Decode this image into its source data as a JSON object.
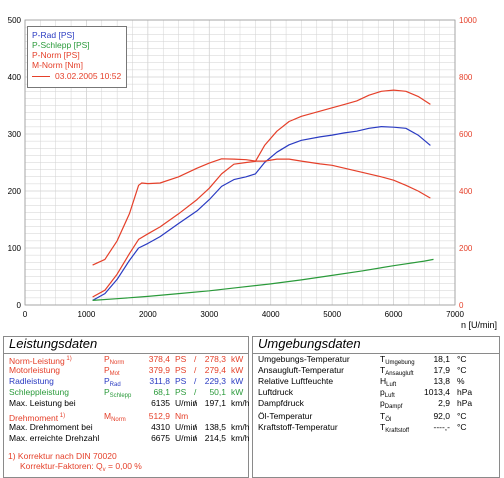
{
  "chart_data": {
    "type": "line",
    "xlabel": "n [U/min]",
    "xlim": [
      0,
      7000
    ],
    "ylim_left": [
      0,
      500
    ],
    "ylim_right": [
      0,
      1000
    ],
    "x_ticks": [
      "0",
      "1000",
      "2000",
      "3000",
      "4000",
      "5000",
      "6000",
      "7000"
    ],
    "y_ticks_left": [
      "0",
      "100",
      "200",
      "300",
      "400",
      "500"
    ],
    "y_ticks_right": [
      "0",
      "200",
      "400",
      "600",
      "800",
      "1000"
    ],
    "grid": true,
    "legend_position": "top-left",
    "series": [
      {
        "name": "P-Rad [PS]",
        "color": "#2a3bc2",
        "axis": "left",
        "x": [
          1100,
          1300,
          1500,
          1700,
          1850,
          2000,
          2200,
          2500,
          2800,
          3000,
          3200,
          3400,
          3600,
          3750,
          3900,
          4100,
          4300,
          4500,
          4800,
          5000,
          5200,
          5400,
          5600,
          5800,
          6000,
          6200,
          6400,
          6600
        ],
        "y": [
          8,
          20,
          45,
          78,
          100,
          108,
          120,
          143,
          165,
          185,
          208,
          220,
          225,
          230,
          250,
          268,
          281,
          289,
          295,
          298,
          302,
          305,
          310,
          313,
          312,
          310,
          298,
          280
        ]
      },
      {
        "name": "P-Schlepp [PS]",
        "color": "#2a9a3a",
        "axis": "left",
        "x": [
          1100,
          1500,
          2000,
          2500,
          3000,
          3500,
          4000,
          4500,
          5000,
          5500,
          6000,
          6500,
          6650
        ],
        "y": [
          8,
          11,
          15,
          20,
          25,
          31,
          37,
          44,
          52,
          60,
          69,
          77,
          80
        ]
      },
      {
        "name": "P-Norm [PS]",
        "color": "#e5402a",
        "axis": "left",
        "x": [
          1100,
          1300,
          1500,
          1700,
          1850,
          2000,
          2200,
          2500,
          2800,
          3000,
          3200,
          3400,
          3600,
          3750,
          3900,
          4100,
          4300,
          4500,
          4800,
          5000,
          5200,
          5400,
          5600,
          5800,
          6000,
          6200,
          6400,
          6600
        ],
        "y": [
          14,
          26,
          54,
          90,
          115,
          125,
          137,
          160,
          185,
          205,
          230,
          247,
          250,
          252,
          280,
          305,
          322,
          331,
          340,
          346,
          352,
          358,
          368,
          375,
          377,
          375,
          366,
          352
        ]
      },
      {
        "name": "M-Norm [Nm]",
        "color": "#e5402a",
        "axis": "right",
        "x": [
          1100,
          1300,
          1500,
          1700,
          1850,
          1900,
          2000,
          2200,
          2500,
          2800,
          3000,
          3200,
          3400,
          3600,
          3750,
          3900,
          4100,
          4300,
          4500,
          4800,
          5000,
          5200,
          5400,
          5600,
          5800,
          6000,
          6200,
          6400,
          6600
        ],
        "y": [
          140,
          160,
          225,
          320,
          420,
          428,
          426,
          428,
          450,
          480,
          498,
          513,
          512,
          510,
          505,
          505,
          512,
          512,
          505,
          495,
          490,
          480,
          470,
          460,
          450,
          438,
          420,
          400,
          375
        ]
      }
    ]
  },
  "legend": {
    "items": [
      {
        "label": "P-Rad [PS]",
        "color": "#2a3bc2"
      },
      {
        "label": "P-Schlepp [PS]",
        "color": "#2a9a3a"
      },
      {
        "label": "P-Norm [PS]",
        "color": "#e5402a"
      },
      {
        "label": "M-Norm [Nm]",
        "color": "#e5402a"
      }
    ],
    "date": "03.02.2005 10:52",
    "date_color": "#e5402a"
  },
  "leistung": {
    "title": "Leistungsdaten",
    "rows": [
      {
        "label": "Norm-Leistung",
        "sup": "1)",
        "sym": "P",
        "sub": "Norm",
        "v1": "378,4",
        "u1": "PS",
        "sep": "/",
        "v2": "278,3",
        "u2": "kW",
        "color": "#e5402a"
      },
      {
        "label": "Motorleistung",
        "sup": "",
        "sym": "P",
        "sub": "Mot",
        "v1": "379,9",
        "u1": "PS",
        "sep": "/",
        "v2": "279,4",
        "u2": "kW",
        "color": "#e5402a"
      },
      {
        "label": "Radleistung",
        "sup": "",
        "sym": "P",
        "sub": "Rad",
        "v1": "311,8",
        "u1": "PS",
        "sep": "/",
        "v2": "229,3",
        "u2": "kW",
        "color": "#2a3bc2"
      },
      {
        "label": "Schleppleistung",
        "sup": "",
        "sym": "P",
        "sub": "Schlepp",
        "v1": "68,1",
        "u1": "PS",
        "sep": "/",
        "v2": "50,1",
        "u2": "kW",
        "color": "#2a9a3a"
      },
      {
        "label": "Max. Leistung bei",
        "sup": "",
        "sym": "",
        "sub": "",
        "v1": "6135",
        "u1": "U/min",
        "sep": "/",
        "v2": "197,1",
        "u2": "km/h",
        "color": "#000000"
      },
      {
        "label": "Drehmoment",
        "sup": "1)",
        "sym": "M",
        "sub": "Norm",
        "v1": "512,9",
        "u1": "Nm",
        "sep": "",
        "v2": "",
        "u2": "",
        "color": "#e5402a"
      },
      {
        "label": "Max. Drehmoment bei",
        "sup": "",
        "sym": "",
        "sub": "",
        "v1": "4310",
        "u1": "U/min",
        "sep": "/",
        "v2": "138,5",
        "u2": "km/h",
        "color": "#000000"
      },
      {
        "label": "Max. erreichte Drehzahl",
        "sup": "",
        "sym": "",
        "sub": "",
        "v1": "6675",
        "u1": "U/min",
        "sep": "/",
        "v2": "214,5",
        "u2": "km/h",
        "color": "#000000"
      }
    ],
    "note1": "1) Korrektur nach DIN 70020",
    "note2_pre": "Korrektur-Faktoren: Q",
    "note2_sub": "v",
    "note2_val": "=   0,00 %",
    "note_color": "#e5402a"
  },
  "umgebung": {
    "title": "Umgebungsdaten",
    "rows": [
      {
        "label": "Umgebungs-Temperatur",
        "sym": "T",
        "sub": "Umgebung",
        "val": "18,1",
        "unit": "°C"
      },
      {
        "label": "Ansaugluft-Temperatur",
        "sym": "T",
        "sub": "Ansaugluft",
        "val": "17,9",
        "unit": "°C"
      },
      {
        "label": "Relative Luftfeuchte",
        "sym": "H",
        "sub": "Luft",
        "val": "13,8",
        "unit": "%"
      },
      {
        "label": "Luftdruck",
        "sym": "p",
        "sub": "Luft",
        "val": "1013,4",
        "unit": "hPa"
      },
      {
        "label": "Dampfdruck",
        "sym": "p",
        "sub": "Dampf",
        "val": "2,9",
        "unit": "hPa"
      },
      {
        "label": "Öl-Temperatur",
        "sym": "T",
        "sub": "Öl",
        "val": "92,0",
        "unit": "°C"
      },
      {
        "label": "Kraftstoff-Temperatur",
        "sym": "T",
        "sub": "Kraftstoff",
        "val": "----,-",
        "unit": "°C"
      }
    ]
  },
  "colors": {
    "grid": "#d2d2d2",
    "left_axis": "#000000",
    "right_axis": "#e5402a"
  }
}
